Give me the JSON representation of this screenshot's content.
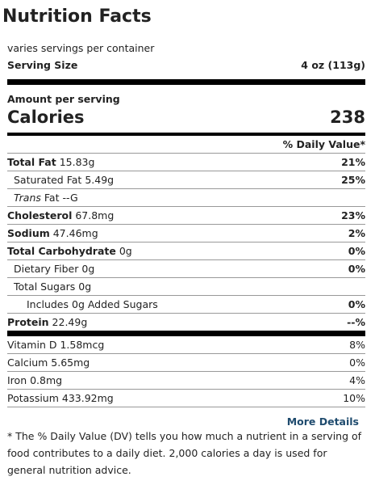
{
  "title": "Nutrition Facts",
  "servings": "varies servings per container",
  "serving_size_label": "Serving Size",
  "serving_size": "4 oz (113g)",
  "amount_per_serving": "Amount per serving",
  "calories_label": "Calories",
  "calories": "238",
  "dv_header": "% Daily Value*",
  "rows": [
    {
      "name": "Total Fat",
      "amount": "15.83g",
      "dv": "21%"
    },
    {
      "name": "Saturated Fat",
      "amount": "5.49g",
      "dv": "25%"
    },
    {
      "name": "Trans",
      "name_rest": "Fat",
      "amount": "--G"
    },
    {
      "name": "Cholesterol",
      "amount": "67.8mg",
      "dv": "23%"
    },
    {
      "name": "Sodium",
      "amount": "47.46mg",
      "dv": "2%"
    },
    {
      "name": "Total Carbohydrate",
      "amount": "0g",
      "dv": "0%"
    },
    {
      "name": "Dietary Fiber",
      "amount": "0g",
      "dv": "0%"
    },
    {
      "name": "Total Sugars",
      "amount": "0g"
    },
    {
      "name": "Includes 0g Added Sugars",
      "dv": "0%"
    },
    {
      "name": "Protein",
      "amount": "22.49g",
      "dv": "--%"
    }
  ],
  "vitamins": [
    {
      "name": "Vitamin D",
      "amount": "1.58mcg",
      "dv": "8%"
    },
    {
      "name": "Calcium",
      "amount": "5.65mg",
      "dv": "0%"
    },
    {
      "name": "Iron",
      "amount": "0.8mg",
      "dv": "4%"
    },
    {
      "name": "Potassium",
      "amount": "433.92mg",
      "dv": "10%"
    }
  ],
  "more_details": "More Details",
  "footnote": "* The % Daily Value (DV) tells you how much a nutrient in a serving of food contributes to a daily diet. 2,000 calories a day is used for general nutrition advice."
}
